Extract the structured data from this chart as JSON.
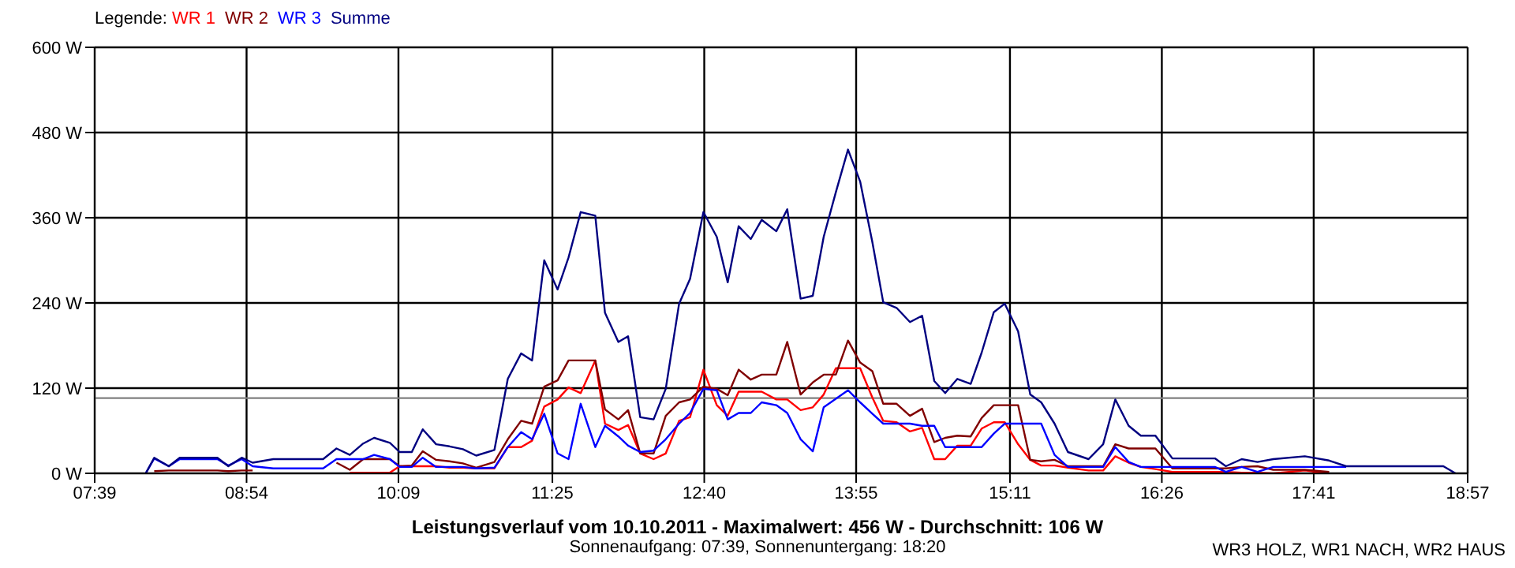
{
  "chart_data": {
    "type": "line",
    "title": "Leistungsverlauf vom 10.10.2011 - Maximalwert: 456 W - Durchschnitt: 106 W",
    "subtitle": "Sonnenaufgang: 07:39, Sonnenuntergang: 18:20",
    "legend_title": "Legende:",
    "annotations": [
      "WR3 HOLZ, WR1 NACH, WR2 HAUS"
    ],
    "x": [
      8.07,
      8.14,
      8.26,
      8.35,
      8.66,
      8.75,
      8.86,
      8.95,
      9.12,
      9.53,
      9.64,
      9.75,
      9.86,
      9.95,
      10.08,
      10.16,
      10.26,
      10.35,
      10.46,
      10.57,
      10.68,
      10.79,
      10.94,
      11.05,
      11.16,
      11.25,
      11.35,
      11.46,
      11.55,
      11.65,
      11.77,
      11.85,
      11.96,
      12.04,
      12.14,
      12.25,
      12.35,
      12.46,
      12.55,
      12.66,
      12.77,
      12.86,
      12.95,
      13.05,
      13.14,
      13.26,
      13.35,
      13.46,
      13.56,
      13.65,
      13.75,
      13.85,
      13.95,
      14.05,
      14.14,
      14.25,
      14.36,
      14.46,
      14.56,
      14.65,
      14.75,
      14.86,
      14.95,
      15.05,
      15.14,
      15.25,
      15.35,
      15.44,
      15.55,
      15.66,
      15.83,
      15.95,
      16.05,
      16.16,
      16.26,
      16.38,
      16.52,
      16.87,
      16.96,
      17.09,
      17.22,
      17.35,
      17.61,
      17.81,
      17.95,
      18.75,
      18.85
    ],
    "series": [
      {
        "name": "WR 1",
        "color": "#ff0000",
        "values": [
          null,
          null,
          null,
          null,
          null,
          null,
          null,
          null,
          null,
          null,
          null,
          1,
          1,
          1,
          1,
          10,
          10,
          10,
          10,
          8,
          8,
          7,
          7,
          37,
          37,
          46,
          94,
          104,
          121,
          113,
          159,
          70,
          61,
          68,
          28,
          20,
          28,
          74,
          79,
          146,
          96,
          81,
          115,
          115,
          115,
          104,
          104,
          89,
          93,
          111,
          148,
          148,
          148,
          107,
          74,
          72,
          59,
          64,
          20,
          20,
          39,
          39,
          63,
          72,
          72,
          41,
          19,
          11,
          11,
          8,
          4,
          4,
          24,
          15,
          9,
          6,
          2,
          2,
          2,
          1,
          1,
          0,
          4,
          0,
          null,
          null,
          null
        ]
      },
      {
        "name": "WR 2",
        "color": "#800000",
        "values": [
          null,
          3,
          4,
          4,
          4,
          3,
          4,
          4,
          null,
          null,
          15,
          5,
          20,
          20,
          20,
          10,
          11,
          31,
          19,
          17,
          14,
          8,
          16,
          48,
          74,
          70,
          122,
          131,
          159,
          159,
          159,
          90,
          76,
          89,
          28,
          28,
          81,
          100,
          104,
          122,
          119,
          110,
          146,
          132,
          139,
          139,
          185,
          111,
          128,
          139,
          139,
          187,
          156,
          144,
          98,
          98,
          81,
          91,
          44,
          50,
          53,
          52,
          78,
          96,
          96,
          96,
          19,
          17,
          19,
          10,
          10,
          10,
          41,
          35,
          35,
          35,
          7,
          7,
          7,
          9,
          10,
          5,
          5,
          2,
          null,
          null,
          null
        ]
      },
      {
        "name": "WR 3",
        "color": "#0000ff",
        "values": [
          0,
          21,
          10,
          20,
          20,
          11,
          20,
          10,
          7,
          7,
          20,
          20,
          20,
          26,
          20,
          9,
          9,
          22,
          9,
          9,
          9,
          7,
          8,
          37,
          58,
          48,
          84,
          28,
          20,
          98,
          37,
          67,
          52,
          39,
          30,
          32,
          48,
          70,
          85,
          119,
          117,
          76,
          85,
          85,
          100,
          96,
          85,
          48,
          31,
          93,
          105,
          117,
          100,
          84,
          70,
          70,
          70,
          67,
          67,
          37,
          37,
          37,
          37,
          56,
          70,
          70,
          70,
          70,
          26,
          9,
          9,
          9,
          37,
          16,
          9,
          9,
          9,
          9,
          2,
          9,
          2,
          9,
          9,
          9,
          9,
          null,
          null
        ]
      },
      {
        "name": "Summe",
        "color": "#000080",
        "values": [
          0,
          22,
          10,
          22,
          22,
          10,
          22,
          15,
          20,
          20,
          35,
          26,
          42,
          50,
          43,
          30,
          30,
          62,
          41,
          38,
          34,
          25,
          33,
          133,
          169,
          159,
          300,
          259,
          304,
          368,
          363,
          226,
          185,
          193,
          79,
          76,
          119,
          239,
          274,
          368,
          333,
          269,
          348,
          330,
          357,
          341,
          372,
          246,
          250,
          333,
          396,
          456,
          411,
          326,
          241,
          233,
          213,
          222,
          130,
          113,
          133,
          126,
          170,
          227,
          239,
          200,
          111,
          100,
          70,
          30,
          20,
          41,
          104,
          67,
          53,
          53,
          21,
          21,
          10,
          20,
          16,
          20,
          24,
          18,
          10,
          10,
          0
        ]
      }
    ],
    "xlim": [
      7.65,
      18.95
    ],
    "xticks": [
      {
        "value": 7.65,
        "label": "07:39"
      },
      {
        "value": 8.9,
        "label": "08:54"
      },
      {
        "value": 10.15,
        "label": "10:09"
      },
      {
        "value": 11.417,
        "label": "11:25"
      },
      {
        "value": 12.667,
        "label": "12:40"
      },
      {
        "value": 13.917,
        "label": "13:55"
      },
      {
        "value": 15.183,
        "label": "15:11"
      },
      {
        "value": 16.433,
        "label": "16:26"
      },
      {
        "value": 17.683,
        "label": "17:41"
      },
      {
        "value": 18.95,
        "label": "18:57"
      }
    ],
    "ylim": [
      0,
      600
    ],
    "yticks": [
      {
        "value": 0,
        "label": "0 W"
      },
      {
        "value": 120,
        "label": "120 W"
      },
      {
        "value": 240,
        "label": "240 W"
      },
      {
        "value": 360,
        "label": "360 W"
      },
      {
        "value": 480,
        "label": "480 W"
      },
      {
        "value": 600,
        "label": "600 W"
      }
    ],
    "ref_lines": [
      {
        "axis": "y",
        "value": 106,
        "color": "#808080"
      }
    ],
    "grid": true,
    "legend": "top left",
    "marker": "none",
    "line_style": "solid"
  }
}
